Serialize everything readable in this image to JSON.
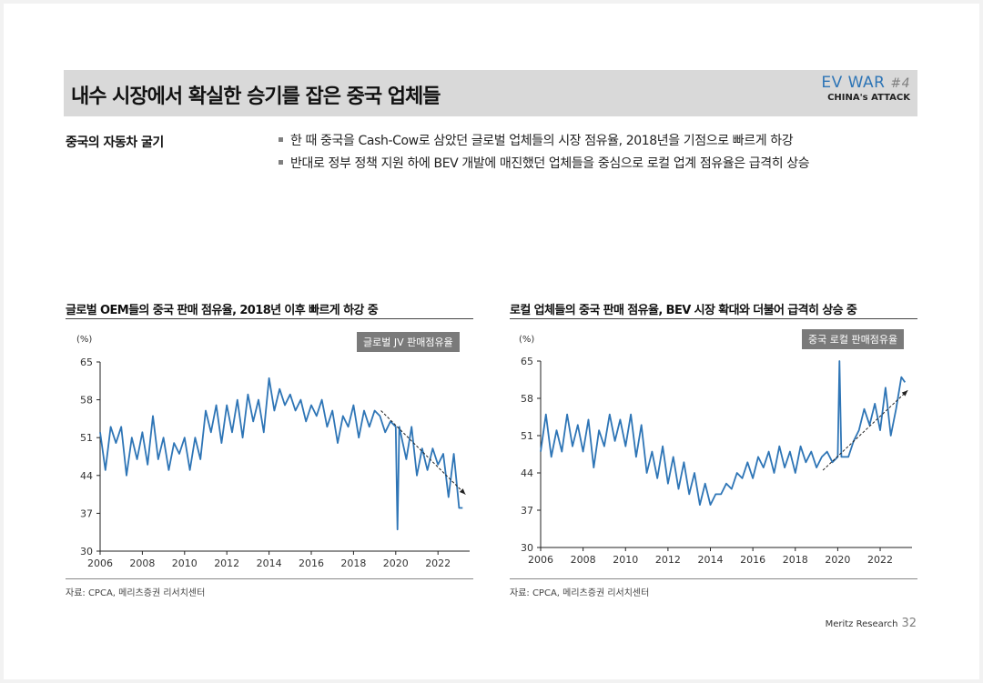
{
  "header": {
    "title": "내수 시장에서 확실한 승기를 잡은 중국 업체들",
    "brand_main": "EV WAR",
    "brand_num": "#4",
    "brand_sub": "CHINA's ATTACK"
  },
  "section": {
    "label": "중국의 자동차 굴기",
    "bullets": [
      "한 때 중국을 Cash-Cow로 삼았던 글로벌 업체들의 시장 점유율, 2018년을 기점으로 빠르게 하강",
      "반대로 정부 정책 지원 하에 BEV 개발에 매진했던 업체들을 중심으로 로컬 업계 점유율은 급격히 상승"
    ]
  },
  "charts": {
    "left": {
      "unit": "(%)",
      "source": "자료: CPCA, 메리츠증권 리서치센터"
    },
    "right": {
      "unit": "(%)",
      "source": "자료: CPCA, 메리츠증권 리서치센터"
    }
  },
  "footer": {
    "label": "Meritz Research",
    "page": "32"
  },
  "colors": {
    "line": "#2e75b6",
    "title_bar": "#d9d9d9",
    "legend_box": "#7a7a7a",
    "brand": "#2e75b6"
  },
  "chart_data": [
    {
      "type": "line",
      "title": "글로벌 OEM들의 중국 판매 점유율, 2018년 이후 빠르게 하강 중",
      "legend": "글로벌 JV 판매점유율",
      "ylabel": "(%)",
      "ylim": [
        30,
        65
      ],
      "yticks": [
        30,
        37,
        44,
        51,
        58,
        65
      ],
      "xlim": [
        2006,
        2023.5
      ],
      "xticks": [
        2006,
        2008,
        2010,
        2012,
        2014,
        2016,
        2018,
        2020,
        2022
      ],
      "trend_arrow": {
        "from": [
          2019.3,
          56
        ],
        "to": [
          2023.3,
          40.5
        ]
      },
      "series": [
        {
          "x": [
            2006.0,
            2006.25,
            2006.5,
            2006.75,
            2007.0,
            2007.25,
            2007.5,
            2007.75,
            2008.0,
            2008.25,
            2008.5,
            2008.75,
            2009.0,
            2009.25,
            2009.5,
            2009.75,
            2010.0,
            2010.25,
            2010.5,
            2010.75,
            2011.0,
            2011.25,
            2011.5,
            2011.75,
            2012.0,
            2012.25,
            2012.5,
            2012.75,
            2013.0,
            2013.25,
            2013.5,
            2013.75,
            2014.0,
            2014.25,
            2014.5,
            2014.75,
            2015.0,
            2015.25,
            2015.5,
            2015.75,
            2016.0,
            2016.25,
            2016.5,
            2016.75,
            2017.0,
            2017.25,
            2017.5,
            2017.75,
            2018.0,
            2018.25,
            2018.5,
            2018.75,
            2019.0,
            2019.25,
            2019.5,
            2019.75,
            2020.0,
            2020.08,
            2020.17,
            2020.5,
            2020.75,
            2021.0,
            2021.25,
            2021.5,
            2021.75,
            2022.0,
            2022.25,
            2022.5,
            2022.75,
            2023.0,
            2023.17
          ],
          "y": [
            52,
            45,
            53,
            50,
            53,
            44,
            51,
            47,
            52,
            46,
            55,
            47,
            51,
            45,
            50,
            48,
            51,
            45,
            51,
            47,
            56,
            52,
            57,
            50,
            57,
            52,
            58,
            51,
            59,
            54,
            58,
            52,
            62,
            56,
            60,
            57,
            59,
            56,
            58,
            54,
            57,
            55,
            58,
            53,
            56,
            50,
            55,
            53,
            57,
            51,
            56,
            53,
            56,
            55,
            52,
            54,
            53,
            34,
            53,
            47,
            53,
            44,
            49,
            45,
            49,
            46,
            48,
            40,
            48,
            38,
            38
          ]
        }
      ]
    },
    {
      "type": "line",
      "title": "로컬 업체들의 중국 판매 점유율, BEV 시장 확대와 더불어 급격히 상승 중",
      "legend": "중국 로컬 판매점유율",
      "ylabel": "(%)",
      "ylim": [
        30,
        65
      ],
      "yticks": [
        30,
        37,
        44,
        51,
        58,
        65
      ],
      "xlim": [
        2006,
        2023.5
      ],
      "xticks": [
        2006,
        2008,
        2010,
        2012,
        2014,
        2016,
        2018,
        2020,
        2022
      ],
      "trend_arrow": {
        "from": [
          2019.3,
          44.5
        ],
        "to": [
          2023.3,
          59.5
        ]
      },
      "series": [
        {
          "x": [
            2006.0,
            2006.25,
            2006.5,
            2006.75,
            2007.0,
            2007.25,
            2007.5,
            2007.75,
            2008.0,
            2008.25,
            2008.5,
            2008.75,
            2009.0,
            2009.25,
            2009.5,
            2009.75,
            2010.0,
            2010.25,
            2010.5,
            2010.75,
            2011.0,
            2011.25,
            2011.5,
            2011.75,
            2012.0,
            2012.25,
            2012.5,
            2012.75,
            2013.0,
            2013.25,
            2013.5,
            2013.75,
            2014.0,
            2014.25,
            2014.5,
            2014.75,
            2015.0,
            2015.25,
            2015.5,
            2015.75,
            2016.0,
            2016.25,
            2016.5,
            2016.75,
            2017.0,
            2017.25,
            2017.5,
            2017.75,
            2018.0,
            2018.25,
            2018.5,
            2018.75,
            2019.0,
            2019.25,
            2019.5,
            2019.75,
            2020.0,
            2020.08,
            2020.17,
            2020.5,
            2020.75,
            2021.0,
            2021.25,
            2021.5,
            2021.75,
            2022.0,
            2022.25,
            2022.5,
            2022.75,
            2023.0,
            2023.17
          ],
          "y": [
            48,
            55,
            47,
            52,
            48,
            55,
            49,
            53,
            48,
            54,
            45,
            52,
            49,
            55,
            50,
            54,
            49,
            55,
            47,
            53,
            44,
            48,
            43,
            49,
            42,
            47,
            41,
            46,
            40,
            44,
            38,
            42,
            38,
            40,
            40,
            42,
            41,
            44,
            43,
            46,
            43,
            47,
            45,
            48,
            44,
            49,
            45,
            48,
            44,
            49,
            46,
            48,
            45,
            47,
            48,
            46,
            47,
            65,
            47,
            47,
            50,
            52,
            56,
            53,
            57,
            52,
            60,
            51,
            56,
            62,
            61
          ]
        }
      ]
    }
  ]
}
